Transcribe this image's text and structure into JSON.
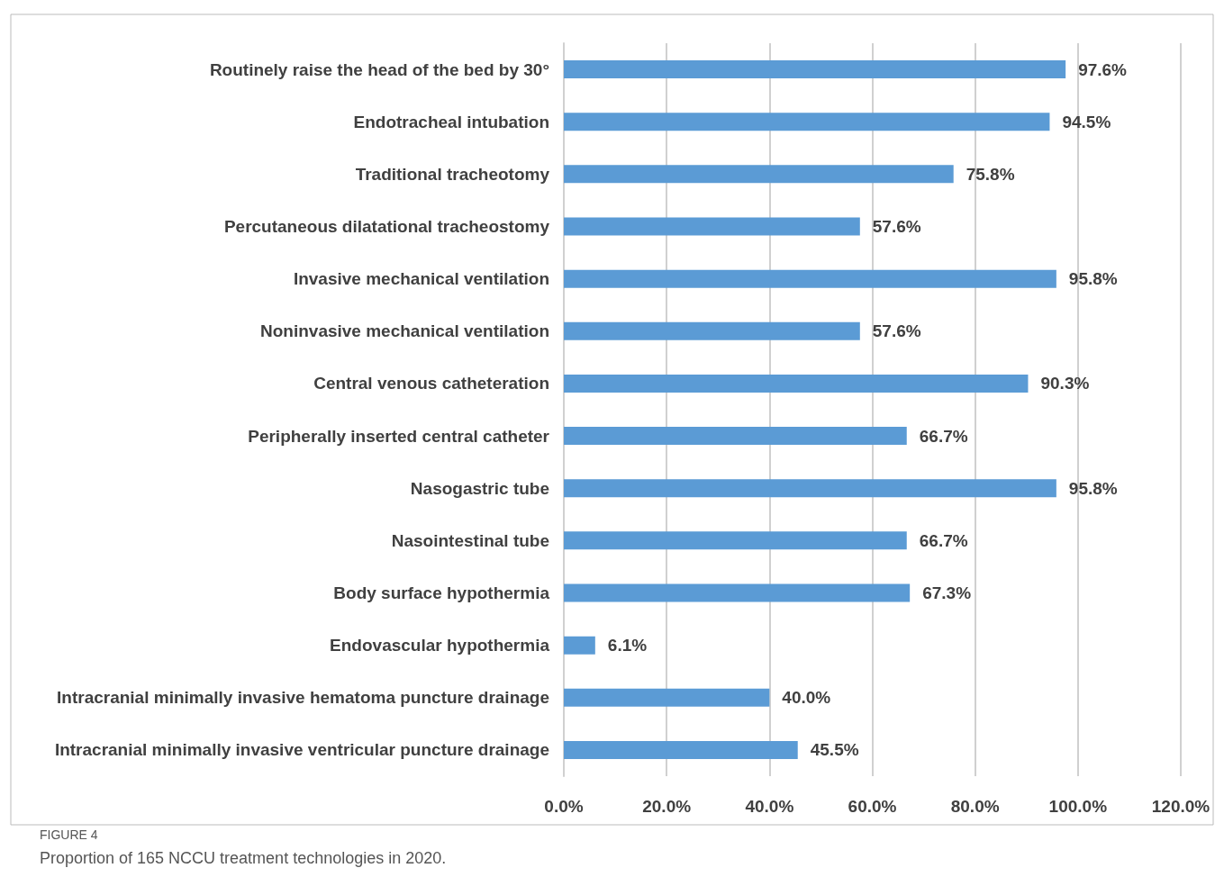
{
  "chart_data": {
    "type": "bar",
    "orientation": "horizontal",
    "categories": [
      "Routinely raise the head of the bed by 30°",
      "Endotracheal intubation",
      "Traditional tracheotomy",
      "Percutaneous dilatational tracheostomy",
      "Invasive mechanical ventilation",
      "Noninvasive mechanical ventilation",
      "Central venous catheteration",
      "Peripherally inserted central catheter",
      "Nasogastric tube",
      "Nasointestinal tube",
      "Body surface hypothermia",
      "Endovascular hypothermia",
      "Intracranial minimally invasive hematoma puncture drainage",
      "Intracranial minimally invasive ventricular puncture drainage"
    ],
    "values": [
      97.6,
      94.5,
      75.8,
      57.6,
      95.8,
      57.6,
      90.3,
      66.7,
      95.8,
      66.7,
      67.3,
      6.1,
      40.0,
      45.5
    ],
    "value_labels": [
      "97.6%",
      "94.5%",
      "75.8%",
      "57.6%",
      "95.8%",
      "57.6%",
      "90.3%",
      "66.7%",
      "95.8%",
      "66.7%",
      "67.3%",
      "6.1%",
      "40.0%",
      "45.5%"
    ],
    "color": "#5b9bd5",
    "xlim": [
      0,
      120
    ],
    "xticks": [
      {
        "value": 0,
        "label": "0.0%"
      },
      {
        "value": 20,
        "label": "20.0%"
      },
      {
        "value": 40,
        "label": "40.0%"
      },
      {
        "value": 60,
        "label": "60.0%"
      },
      {
        "value": 80,
        "label": "80.0%"
      },
      {
        "value": 100,
        "label": "100.0%"
      },
      {
        "value": 120,
        "label": "120.0%"
      }
    ],
    "grid": "x",
    "annotations": [
      "FIGURE 4",
      "Proportion of 165 NCCU treatment technologies in 2020."
    ]
  }
}
